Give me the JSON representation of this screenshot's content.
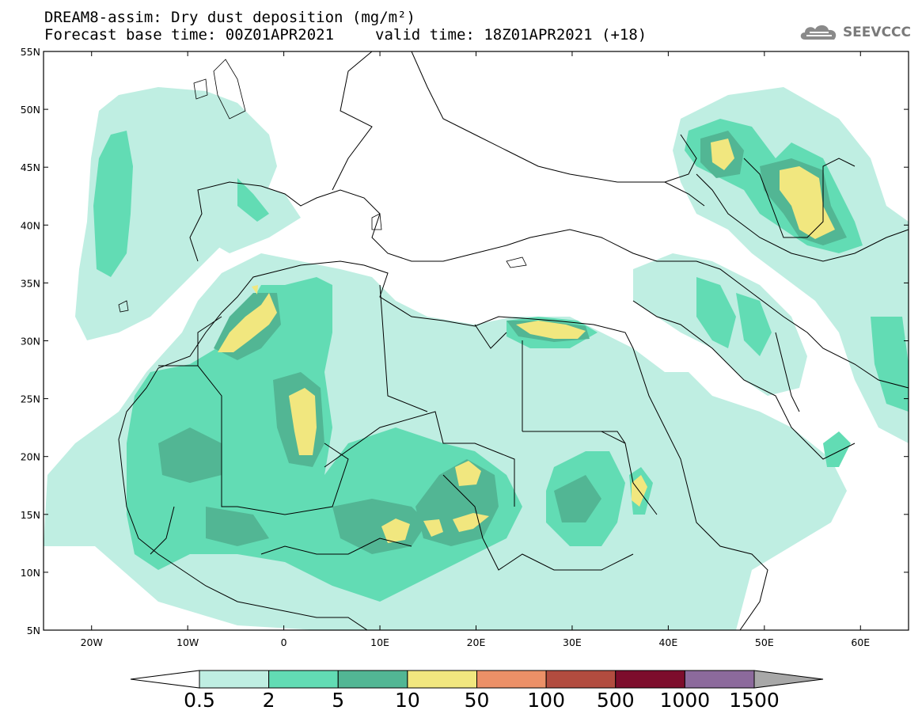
{
  "header": {
    "title_line1": "DREAM8-assim: Dry dust deposition (mg/m²)",
    "base_time": "Forecast base time: 00Z01APR2021",
    "valid_time": "valid time: 18Z01APR2021 (+18)",
    "logo_text": "SEEVCCC",
    "logo_icon": "cloud-icon"
  },
  "map": {
    "lon_range": [
      -25,
      65
    ],
    "lat_range": [
      5,
      55
    ],
    "lon_ticks": [
      {
        "value": -20,
        "label": "20W"
      },
      {
        "value": -10,
        "label": "10W"
      },
      {
        "value": 0,
        "label": "0"
      },
      {
        "value": 10,
        "label": "10E"
      },
      {
        "value": 20,
        "label": "20E"
      },
      {
        "value": 30,
        "label": "30E"
      },
      {
        "value": 40,
        "label": "40E"
      },
      {
        "value": 50,
        "label": "50E"
      },
      {
        "value": 60,
        "label": "60E"
      }
    ],
    "lat_ticks": [
      {
        "value": 55,
        "label": "55N"
      },
      {
        "value": 50,
        "label": "50N"
      },
      {
        "value": 45,
        "label": "45N"
      },
      {
        "value": 40,
        "label": "40N"
      },
      {
        "value": 35,
        "label": "35N"
      },
      {
        "value": 30,
        "label": "30N"
      },
      {
        "value": 25,
        "label": "25N"
      },
      {
        "value": 20,
        "label": "20N"
      },
      {
        "value": 15,
        "label": "15N"
      },
      {
        "value": 10,
        "label": "10N"
      },
      {
        "value": 5,
        "label": "5N"
      }
    ],
    "level_colors": [
      "#bfeee2",
      "#62dcb4",
      "#52b694",
      "#f1e77f"
    ]
  },
  "colorbar": {
    "levels": [
      "0.5",
      "2",
      "5",
      "10",
      "50",
      "100",
      "500",
      "1000",
      "1500"
    ],
    "colors": [
      "#ffffff",
      "#bfeee2",
      "#62dcb4",
      "#52b694",
      "#f1e77f",
      "#ec9067",
      "#b24c3f",
      "#7d0d2c",
      "#8c6a9c",
      "#a8a8a8"
    ]
  }
}
